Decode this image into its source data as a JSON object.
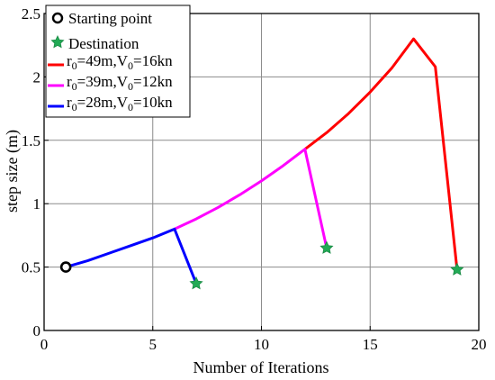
{
  "chart_data": {
    "type": "line",
    "xlabel": "Number of Iterations",
    "ylabel": "step size (m)",
    "xlim": [
      0,
      20
    ],
    "ylim": [
      0,
      2.5
    ],
    "xticks": [
      0,
      5,
      10,
      15,
      20
    ],
    "yticks": [
      0,
      0.5,
      1,
      1.5,
      2,
      2.5
    ],
    "ytick_labels": [
      "0",
      "0.5",
      "1",
      "1.5",
      "2",
      "2.5"
    ],
    "grid": true,
    "legend_position": "top-left",
    "start_point": {
      "label": "Starting point",
      "x": 1,
      "y": 0.5,
      "color": "#000000"
    },
    "destination": {
      "label": "Destination",
      "color": "#22aa55"
    },
    "series": [
      {
        "name": "r0=49m,V0=16kn",
        "legend": {
          "r_sub": "0",
          "r_val": "=49m,V",
          "v_sub": "0",
          "v_val": "=16kn"
        },
        "color": "#ff0000",
        "x": [
          12,
          13,
          14,
          15,
          16,
          17,
          18,
          19
        ],
        "y": [
          1.43,
          1.56,
          1.71,
          1.88,
          2.07,
          2.3,
          2.08,
          0.48
        ],
        "destination": [
          19,
          0.48
        ]
      },
      {
        "name": "r0=39m,V0=12kn",
        "legend": {
          "r_sub": "0",
          "r_val": "=39m,V",
          "v_sub": "0",
          "v_val": "=12kn"
        },
        "color": "#ff00ff",
        "x": [
          6,
          7,
          8,
          9,
          10,
          11,
          12,
          13
        ],
        "y": [
          0.8,
          0.88,
          0.97,
          1.07,
          1.18,
          1.3,
          1.43,
          0.65
        ],
        "destination": [
          13,
          0.65
        ]
      },
      {
        "name": "r0=28m,V0=10kn",
        "legend": {
          "r_sub": "0",
          "r_val": "=28m,V",
          "v_sub": "0",
          "v_val": "=10kn"
        },
        "color": "#0000ff",
        "x": [
          1,
          2,
          3,
          4,
          5,
          6,
          7
        ],
        "y": [
          0.5,
          0.55,
          0.61,
          0.67,
          0.73,
          0.8,
          0.37
        ],
        "destination": [
          7,
          0.37
        ]
      }
    ]
  }
}
